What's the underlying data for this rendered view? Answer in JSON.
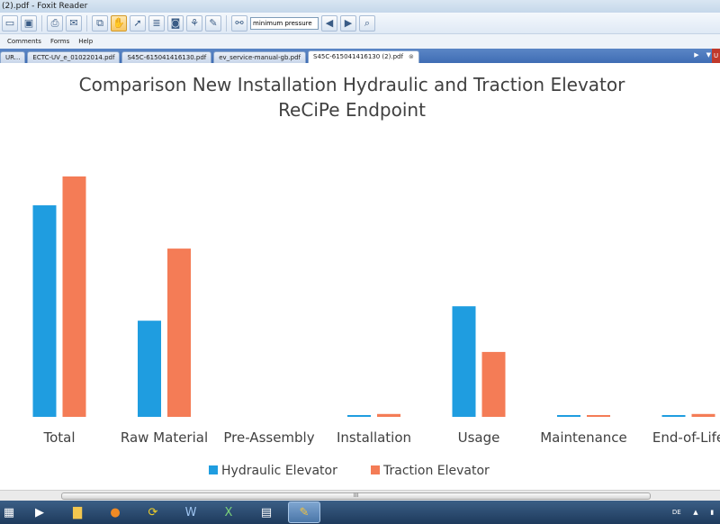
{
  "window": {
    "title": "(2).pdf - Foxit Reader"
  },
  "toolbar": {
    "search_value": "minimum pressure",
    "icons": [
      "open-icon",
      "save-icon",
      "print-icon",
      "email-icon",
      "snapshot-icon",
      "hand-tool-icon",
      "select-cursor-icon",
      "text-select-icon",
      "camera-icon",
      "stamp-icon",
      "pen-icon",
      "binoculars-icon",
      "search-prev-icon",
      "search-next-icon",
      "zoom-icon"
    ]
  },
  "menu": {
    "items": [
      "Comments",
      "Forms",
      "Help"
    ]
  },
  "tabs": [
    {
      "label": "UR..."
    },
    {
      "label": "ECTC-UV_e_01022014.pdf"
    },
    {
      "label": "S45C-615041416130.pdf"
    },
    {
      "label": "ev_service-manual-gb.pdf"
    },
    {
      "label": "S45C-615041416130 (2).pdf",
      "active": true
    }
  ],
  "tab_nav": {
    "prev": "▶",
    "menu": "▼",
    "corner": "U"
  },
  "scrollbar": {
    "grip": "III"
  },
  "chart_data": {
    "type": "bar",
    "title_line1": "Comparison New Installation Hydraulic and Traction Elevator",
    "title_line2": "ReCiPe Endpoint",
    "categories": [
      "Total",
      "Raw Material",
      "Pre-Assembly",
      "Installation",
      "Usage",
      "Maintenance",
      "End-of-Life"
    ],
    "series": [
      {
        "name": "Hydraulic Elevator",
        "color": "#1f9de0",
        "values": [
          88,
          40,
          0,
          0.6,
          46,
          0.3,
          0.6
        ]
      },
      {
        "name": "Traction Elevator",
        "color": "#f47c56",
        "values": [
          100,
          70,
          0,
          1.2,
          27,
          0.3,
          1.2
        ]
      }
    ],
    "ylim": [
      0,
      100
    ],
    "grid": false,
    "legend": "bottom"
  },
  "taskbar": {
    "items": [
      "start-icon",
      "media-player-icon",
      "folder-icon",
      "firefox-icon",
      "sync-icon",
      "word-icon",
      "excel-icon",
      "notepad-icon",
      "foxit-reader-icon"
    ],
    "language": "DE"
  }
}
